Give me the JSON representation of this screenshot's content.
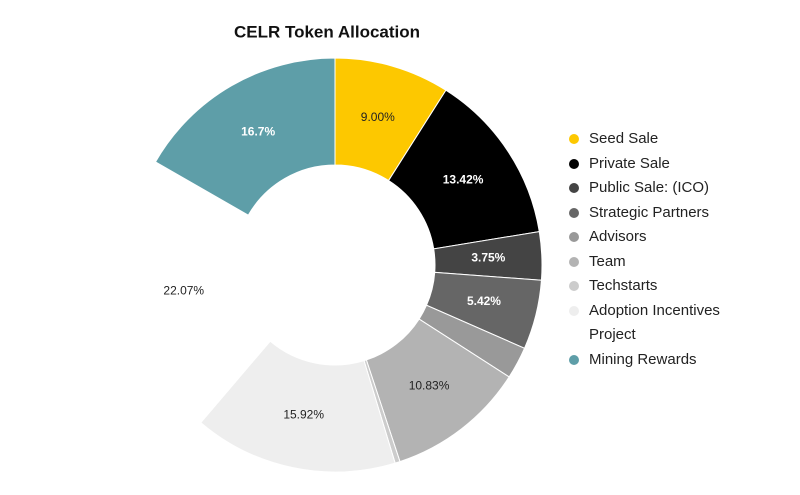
{
  "chart_data": {
    "type": "donut",
    "title": "CELR Token Allocation",
    "categories": [
      "Seed Sale",
      "Private Sale",
      "Public Sale: (ICO)",
      "Strategic Partners",
      "Advisors",
      "Team",
      "Techstarts",
      "Adoption Incentives Project",
      null,
      "Mining Rewards"
    ],
    "values": [
      9.0,
      13.42,
      3.75,
      5.42,
      2.5,
      10.83,
      0.39,
      15.92,
      22.07,
      16.7
    ],
    "value_labels": [
      "9.00%",
      "13.42%",
      "3.75%",
      "5.42%",
      null,
      "10.83%",
      null,
      "15.92%",
      "22.07%",
      "16.7%"
    ],
    "colors": [
      "#fdc800",
      "#000000",
      "#444444",
      "#666666",
      "#999999",
      "#b3b3b3",
      "#cccccc",
      "#eeeeee",
      "#ffffff",
      "#5e9ea8"
    ],
    "legend": "right"
  }
}
